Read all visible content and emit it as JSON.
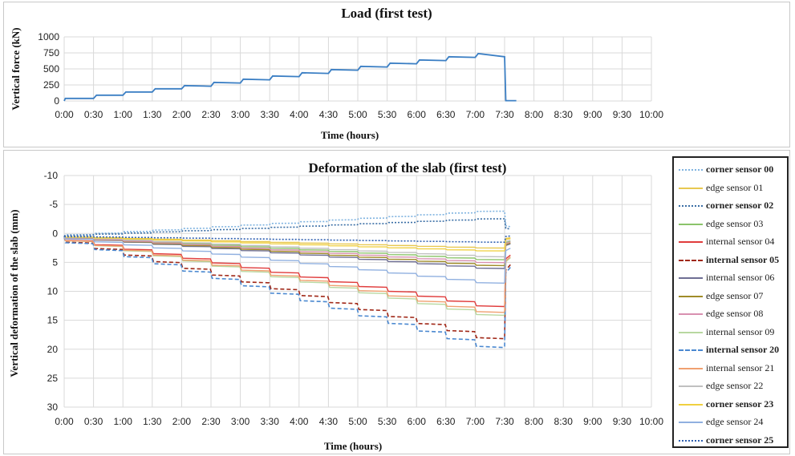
{
  "chart_data": [
    {
      "type": "line",
      "title": "Load  (first test)",
      "xlabel": "Time (hours)",
      "ylabel": "Vertical force (kN)",
      "x_ticks": [
        "0:00",
        "0:30",
        "1:00",
        "1:30",
        "2:00",
        "2:30",
        "3:00",
        "3:30",
        "4:00",
        "4:30",
        "5:00",
        "5:30",
        "6:00",
        "6:30",
        "7:00",
        "7:30",
        "8:00",
        "8:30",
        "9:00",
        "9:30",
        "10:00"
      ],
      "y_ticks": [
        "0",
        "250",
        "500",
        "750",
        "1000"
      ],
      "xlim": [
        0,
        10
      ],
      "ylim": [
        0,
        1000
      ],
      "grid": true,
      "series": [
        {
          "color": "#3b7fc4",
          "x": [
            0,
            0.02,
            0.5,
            0.55,
            1.0,
            1.05,
            1.5,
            1.55,
            2.0,
            2.05,
            2.5,
            2.55,
            3.0,
            3.05,
            3.5,
            3.55,
            4.0,
            4.05,
            4.5,
            4.55,
            5.0,
            5.05,
            5.5,
            5.55,
            6.0,
            6.05,
            6.5,
            6.55,
            7.0,
            7.05,
            7.5,
            7.52,
            7.7
          ],
          "y": [
            0,
            40,
            40,
            90,
            90,
            140,
            140,
            190,
            190,
            240,
            230,
            290,
            280,
            340,
            330,
            390,
            380,
            440,
            430,
            490,
            480,
            540,
            530,
            590,
            580,
            640,
            630,
            690,
            680,
            740,
            690,
            5,
            5
          ]
        }
      ]
    },
    {
      "type": "line",
      "title": "Deformation  of the slab (first test)",
      "xlabel": "Time (hours)",
      "ylabel": "Vertical deformation of the slab (mm)",
      "x_ticks": [
        "0:00",
        "0:30",
        "1:00",
        "1:30",
        "2:00",
        "2:30",
        "3:00",
        "3:30",
        "4:00",
        "4:30",
        "5:00",
        "5:30",
        "6:00",
        "6:30",
        "7:00",
        "7:30",
        "8:00",
        "8:30",
        "9:00",
        "9:30",
        "10:00"
      ],
      "y_ticks": [
        "-10",
        "-5",
        "0",
        "5",
        "10",
        "15",
        "20",
        "25",
        "30"
      ],
      "xlim": [
        0,
        10
      ],
      "ylim": [
        30,
        -10
      ],
      "y_inverted": true,
      "grid": true,
      "legend_position": "right",
      "series": [
        {
          "name": "corner sensor 00",
          "bold": true,
          "color": "#7fb3e0",
          "dash": "dotted",
          "final": -3.8
        },
        {
          "name": "edge sensor 01",
          "bold": false,
          "color": "#e8c850",
          "dash": "solid",
          "final": 2.5
        },
        {
          "name": "corner sensor 02",
          "bold": true,
          "color": "#3a6ea5",
          "dash": "dotted",
          "final": -2.5
        },
        {
          "name": "edge sensor 03",
          "bold": false,
          "color": "#8bc46a",
          "dash": "solid",
          "final": 4.5
        },
        {
          "name": "internal sensor 04",
          "bold": false,
          "color": "#e03c3c",
          "dash": "solid",
          "final": 12.5
        },
        {
          "name": "internal sensor 05",
          "bold": true,
          "color": "#a02818",
          "dash": "dashed",
          "final": 18.0
        },
        {
          "name": "internal sensor 06",
          "bold": false,
          "color": "#6e6e94",
          "dash": "solid",
          "final": 6.0
        },
        {
          "name": "edge sensor 07",
          "bold": false,
          "color": "#a08c28",
          "dash": "solid",
          "final": 5.5
        },
        {
          "name": "edge sensor 08",
          "bold": false,
          "color": "#d890b0",
          "dash": "solid",
          "final": 5.0
        },
        {
          "name": "internal sensor 09",
          "bold": false,
          "color": "#b8d8a0",
          "dash": "solid",
          "final": 14.0
        },
        {
          "name": "internal sensor 20",
          "bold": true,
          "color": "#4a88d0",
          "dash": "dashed",
          "final": 19.5
        },
        {
          "name": "internal sensor 21",
          "bold": false,
          "color": "#f0a070",
          "dash": "solid",
          "final": 13.5
        },
        {
          "name": "edge sensor 22",
          "bold": false,
          "color": "#c0c0c0",
          "dash": "solid",
          "final": 4.0
        },
        {
          "name": "corner sensor 23",
          "bold": true,
          "color": "#f0d040",
          "dash": "solid",
          "final": 3.0
        },
        {
          "name": "edge sensor 24",
          "bold": false,
          "color": "#90b0e0",
          "dash": "solid",
          "final": 8.5
        },
        {
          "name": "corner sensor 25",
          "bold": true,
          "color": "#3060b0",
          "dash": "dotted",
          "final": 1.5
        }
      ]
    }
  ]
}
